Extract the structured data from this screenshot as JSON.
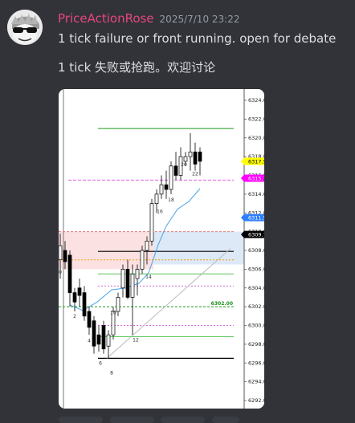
{
  "message": {
    "username": "PriceActionRose",
    "timestamp": "2025/7/10 23:22",
    "lines": [
      "1 tick failure or front running. open for debate",
      "1 tick 失败或抢跑。欢迎讨论"
    ]
  },
  "avatar": {
    "icon": "sunglasses-avatar-icon"
  },
  "chart_data": {
    "type": "candlestick",
    "y_axis_ticks": [
      "6324.0",
      "6322.0",
      "6320.0",
      "6318.0",
      "6316.0",
      "6314.0",
      "6312.0",
      "6310.0",
      "6308.0",
      "6306.0",
      "6304.0",
      "6302.0",
      "6300.0",
      "6298.0",
      "6296.0",
      "6294.0",
      "6292.0"
    ],
    "price_tags": [
      {
        "label": "6317.5",
        "value": 6317.5,
        "color": "#ffff00"
      },
      {
        "label": "6315.7",
        "value": 6315.7,
        "color": "#ff00ff"
      },
      {
        "label": "6311.5",
        "value": 6311.5,
        "color": "#2f7fff"
      },
      {
        "label": "6309.7",
        "value": 6309.7,
        "color": "#000000"
      }
    ],
    "level_label": "6302.00",
    "bar_labels": [
      "0",
      "2",
      "4",
      "6",
      "8",
      "10",
      "12",
      "14",
      "16",
      "18",
      "20",
      "22"
    ]
  }
}
